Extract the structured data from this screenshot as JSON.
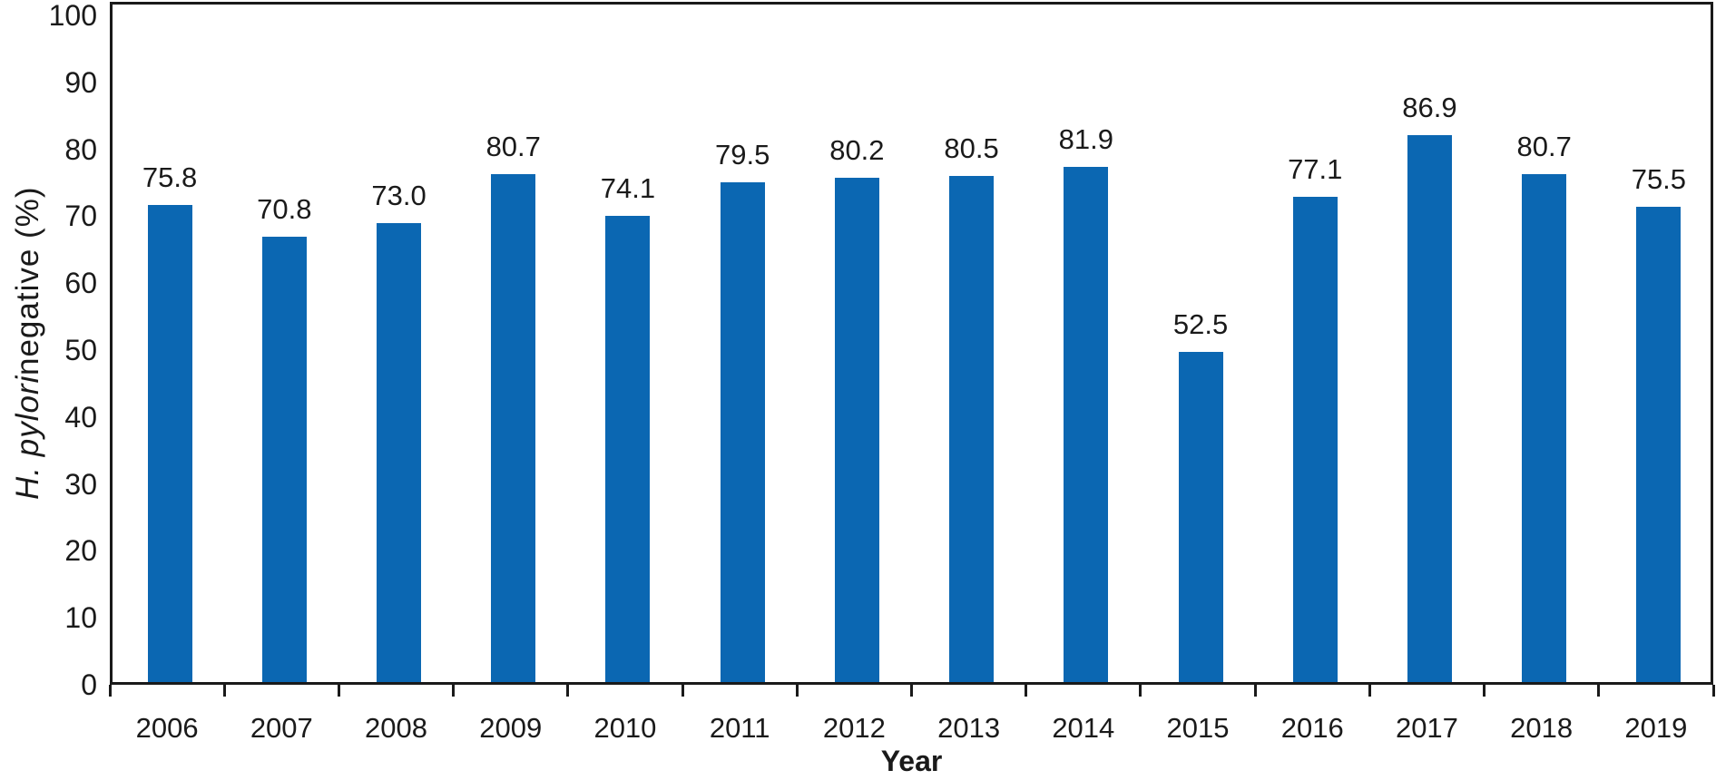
{
  "chart_data": {
    "type": "bar",
    "title": "",
    "categories": [
      "2006",
      "2007",
      "2008",
      "2009",
      "2010",
      "2011",
      "2012",
      "2013",
      "2014",
      "2015",
      "2016",
      "2017",
      "2018",
      "2019"
    ],
    "values": [
      75.8,
      70.8,
      73.0,
      80.7,
      74.1,
      79.5,
      80.2,
      80.5,
      81.9,
      52.5,
      77.1,
      86.9,
      80.7,
      75.5
    ],
    "xlabel": "Year",
    "ylabel": "H. pylori negative (%)",
    "ylabel_italic_part": "H. pylori",
    "ylabel_regular_part": " negative (%)",
    "y_ticks": [
      0,
      10,
      20,
      30,
      40,
      50,
      60,
      70,
      80,
      90,
      100
    ],
    "ylim": [
      0,
      100
    ],
    "grid": false,
    "legend": false,
    "data_labels": true,
    "bar_color": "#0b67b2",
    "axis_color": "#1a1a1a",
    "bar_display_scale": 0.94
  }
}
